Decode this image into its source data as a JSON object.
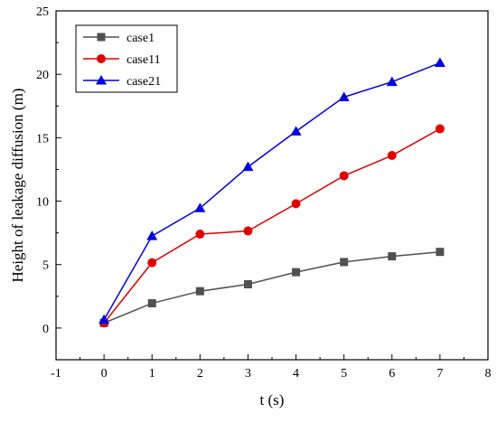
{
  "chart_data": {
    "type": "line",
    "xlabel": "t (s)",
    "ylabel": "Height of leakage diffusion (m)",
    "xlim": [
      -1,
      8
    ],
    "ylim": [
      -2.5,
      25
    ],
    "xticks": [
      "-1",
      "0",
      "1",
      "2",
      "3",
      "4",
      "5",
      "6",
      "7",
      "8"
    ],
    "yticks": [
      "0",
      "5",
      "10",
      "15",
      "20",
      "25"
    ],
    "x": [
      0,
      1,
      2,
      3,
      4,
      5,
      6,
      7
    ],
    "legend_position": "top-left",
    "grid": false,
    "series": [
      {
        "name": "case1",
        "color": "#505050",
        "marker": "square",
        "values": [
          0.4,
          1.95,
          2.9,
          3.45,
          4.4,
          5.2,
          5.65,
          6.0
        ]
      },
      {
        "name": "case11",
        "color": "#e00000",
        "marker": "circle",
        "values": [
          0.4,
          5.15,
          7.4,
          7.65,
          9.8,
          12.0,
          13.6,
          15.7
        ]
      },
      {
        "name": "case21",
        "color": "#0000e0",
        "marker": "triangle",
        "values": [
          0.65,
          7.25,
          9.45,
          12.7,
          15.5,
          18.2,
          19.4,
          20.9
        ]
      }
    ]
  }
}
